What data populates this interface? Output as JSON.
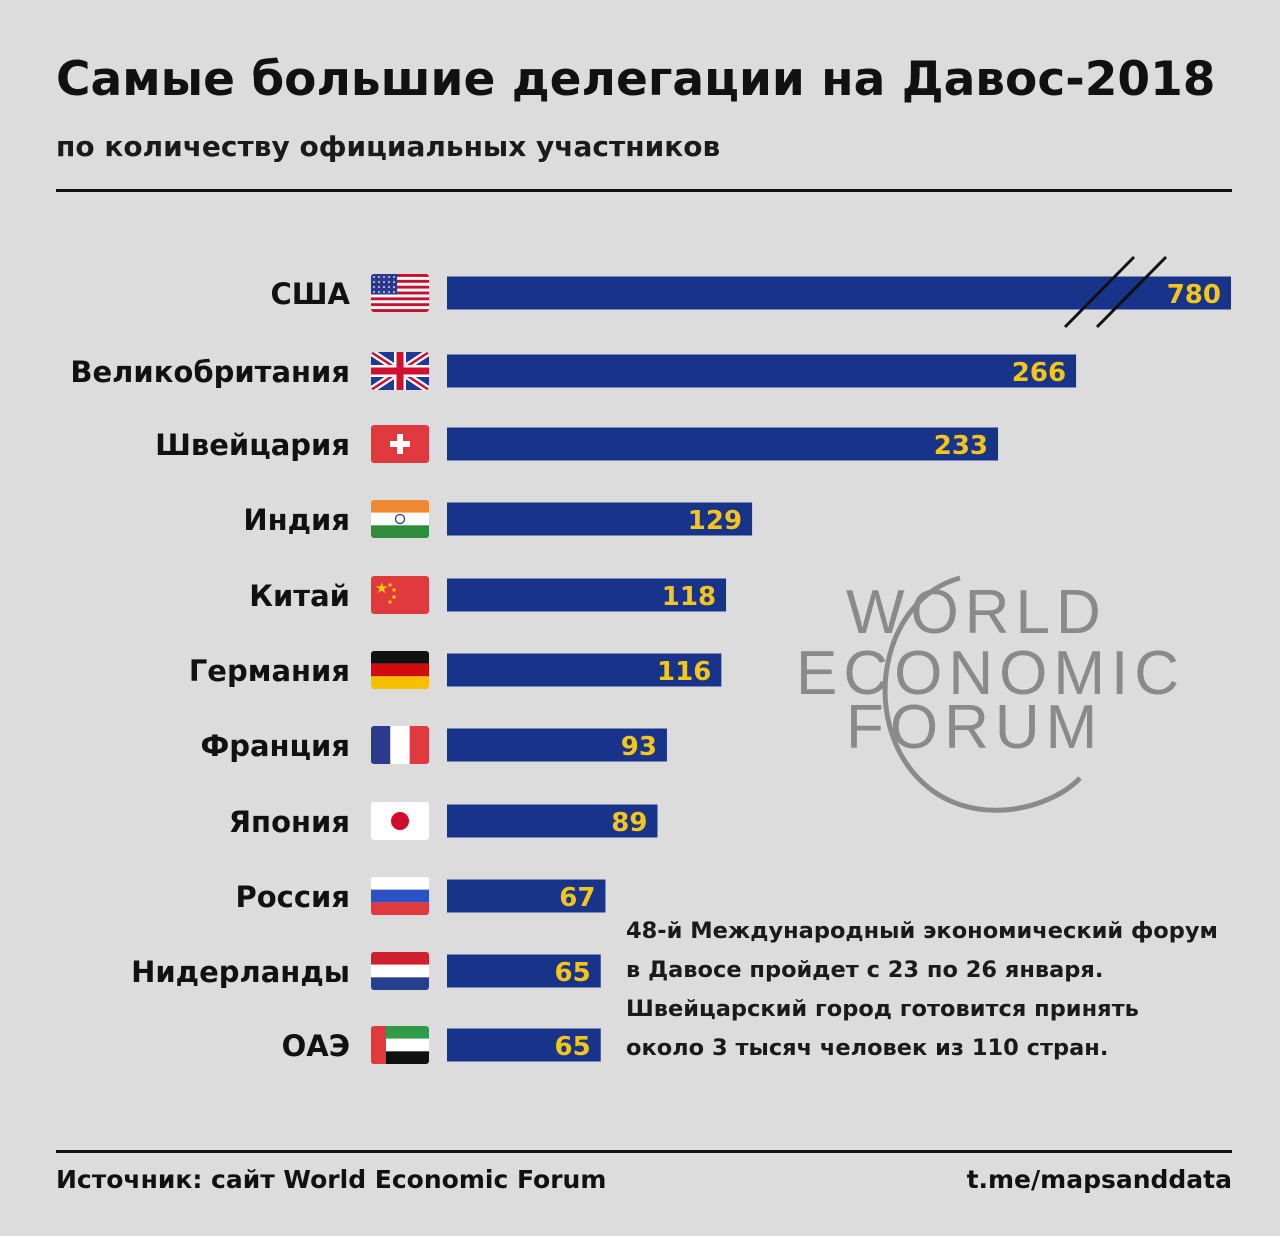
{
  "header": {
    "title": "Самые большие делегации на Давос-2018",
    "subtitle": "по количеству официальных участников"
  },
  "chart_data": {
    "type": "bar",
    "orientation": "horizontal",
    "categories": [
      "США",
      "Великобритания",
      "Швейцария",
      "Индия",
      "Китай",
      "Германия",
      "Франция",
      "Япония",
      "Россия",
      "Нидерланды",
      "ОАЭ"
    ],
    "values": [
      780,
      266,
      233,
      129,
      118,
      116,
      93,
      89,
      67,
      65,
      65
    ],
    "value_labels": [
      "780",
      "266",
      "233",
      "129",
      "118",
      "116",
      "93",
      "89",
      "67",
      "65",
      "65"
    ],
    "axis_break": "США",
    "bar_color": "#18348a",
    "label_color": "#f5c518",
    "flags": [
      "us-flag-icon",
      "uk-flag-icon",
      "switzerland-flag-icon",
      "india-flag-icon",
      "china-flag-icon",
      "germany-flag-icon",
      "france-flag-icon",
      "japan-flag-icon",
      "russia-flag-icon",
      "netherlands-flag-icon",
      "uae-flag-icon"
    ]
  },
  "watermark": {
    "lines": [
      "WORLD",
      "ECONOMIC",
      "FORUM"
    ]
  },
  "note": {
    "lines": [
      "48-й Международный экономический форум",
      "в Давосе пройдет с 23 по 26 января.",
      "Швейцарский город готовится принять",
      "около 3 тысяч человек из 110 стран."
    ]
  },
  "footer": {
    "source": "Источник: сайт World Economic Forum",
    "handle": "t.me/mapsanddata"
  },
  "colors": {
    "background": "#dcdcdc",
    "bar": "#18348a",
    "value_label": "#f5c518",
    "watermark": "#8a8a8a"
  }
}
